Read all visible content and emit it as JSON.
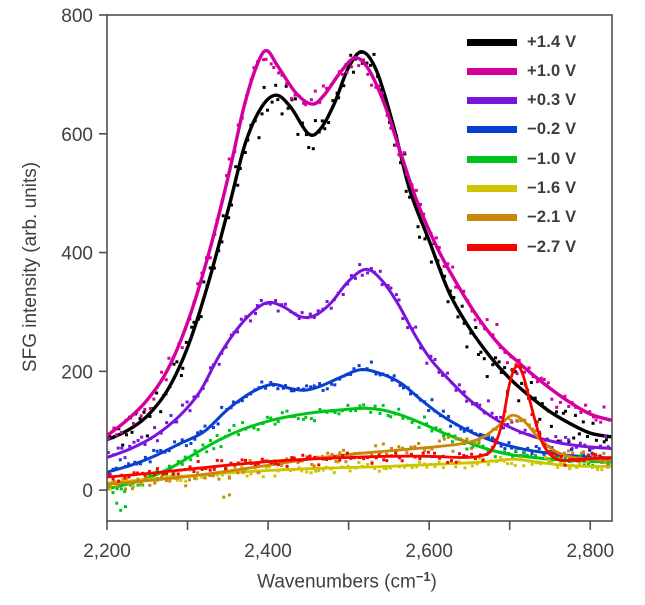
{
  "figure": {
    "ylabel": "SFG intensity (arb. units)",
    "xlabel_prefix": "Wavenumbers (cm",
    "xlabel_sup": "−1",
    "xlabel_suffix": ")"
  },
  "chart_data": {
    "type": "line",
    "title": "",
    "xlabel": "Wavenumbers (cm⁻¹)",
    "ylabel": "SFG intensity (arb. units)",
    "xlim": [
      2200,
      2827
    ],
    "ylim": [
      -52,
      800
    ],
    "grid": false,
    "legend_position": "upper right",
    "x_major_ticks": [
      2200,
      2400,
      2600,
      2800
    ],
    "x_major_tick_labels": [
      "2,200",
      "2,400",
      "2,600",
      "2,800"
    ],
    "x_minor_ticks": [
      2300,
      2500,
      2700
    ],
    "y_ticks": [
      0,
      200,
      400,
      600,
      800
    ],
    "y_tick_labels": [
      "0",
      "200",
      "400",
      "600",
      "800"
    ],
    "axis_color": "#4f4f4f",
    "text_color": "#3d4145",
    "series": [
      {
        "name": "+1.4 V",
        "color": "#000000",
        "noise": 24,
        "dot_step": 4.2,
        "seed": 11,
        "points": [
          [
            2200,
            85
          ],
          [
            2225,
            100
          ],
          [
            2250,
            125
          ],
          [
            2275,
            168
          ],
          [
            2300,
            240
          ],
          [
            2325,
            345
          ],
          [
            2352,
            480
          ],
          [
            2372,
            585
          ],
          [
            2392,
            645
          ],
          [
            2410,
            665
          ],
          [
            2428,
            645
          ],
          [
            2450,
            600
          ],
          [
            2465,
            608
          ],
          [
            2482,
            650
          ],
          [
            2500,
            712
          ],
          [
            2517,
            738
          ],
          [
            2535,
            705
          ],
          [
            2556,
            612
          ],
          [
            2576,
            505
          ],
          [
            2600,
            420
          ],
          [
            2625,
            332
          ],
          [
            2650,
            273
          ],
          [
            2675,
            226
          ],
          [
            2700,
            188
          ],
          [
            2725,
            158
          ],
          [
            2750,
            132
          ],
          [
            2775,
            112
          ],
          [
            2800,
            96
          ],
          [
            2825,
            90
          ]
        ]
      },
      {
        "name": "+1.0 V",
        "color": "#d4009d",
        "noise": 15,
        "dot_step": 5,
        "seed": 22,
        "points": [
          [
            2200,
            92
          ],
          [
            2225,
            118
          ],
          [
            2250,
            152
          ],
          [
            2275,
            202
          ],
          [
            2300,
            282
          ],
          [
            2325,
            392
          ],
          [
            2350,
            525
          ],
          [
            2370,
            645
          ],
          [
            2386,
            715
          ],
          [
            2398,
            740
          ],
          [
            2412,
            714
          ],
          [
            2435,
            668
          ],
          [
            2455,
            650
          ],
          [
            2470,
            666
          ],
          [
            2490,
            704
          ],
          [
            2508,
            728
          ],
          [
            2525,
            708
          ],
          [
            2545,
            648
          ],
          [
            2565,
            566
          ],
          [
            2585,
            486
          ],
          [
            2610,
            408
          ],
          [
            2635,
            346
          ],
          [
            2660,
            292
          ],
          [
            2685,
            248
          ],
          [
            2710,
            216
          ],
          [
            2740,
            182
          ],
          [
            2770,
            152
          ],
          [
            2800,
            128
          ],
          [
            2825,
            118
          ]
        ]
      },
      {
        "name": "+0.3 V",
        "color": "#7a14da",
        "noise": 12,
        "dot_step": 5,
        "seed": 33,
        "points": [
          [
            2200,
            55
          ],
          [
            2230,
            70
          ],
          [
            2260,
            92
          ],
          [
            2290,
            125
          ],
          [
            2315,
            165
          ],
          [
            2340,
            228
          ],
          [
            2365,
            277
          ],
          [
            2388,
            308
          ],
          [
            2403,
            316
          ],
          [
            2420,
            308
          ],
          [
            2440,
            292
          ],
          [
            2458,
            294
          ],
          [
            2478,
            315
          ],
          [
            2500,
            352
          ],
          [
            2522,
            372
          ],
          [
            2542,
            352
          ],
          [
            2562,
            312
          ],
          [
            2582,
            262
          ],
          [
            2602,
            220
          ],
          [
            2626,
            184
          ],
          [
            2650,
            152
          ],
          [
            2675,
            126
          ],
          [
            2700,
            106
          ],
          [
            2730,
            90
          ],
          [
            2760,
            80
          ],
          [
            2790,
            74
          ],
          [
            2825,
            70
          ]
        ]
      },
      {
        "name": "−0.2 V",
        "color": "#0b3fd0",
        "noise": 9,
        "dot_step": 5,
        "seed": 44,
        "points": [
          [
            2200,
            30
          ],
          [
            2230,
            42
          ],
          [
            2260,
            58
          ],
          [
            2290,
            78
          ],
          [
            2320,
            98
          ],
          [
            2350,
            136
          ],
          [
            2380,
            165
          ],
          [
            2405,
            178
          ],
          [
            2425,
            172
          ],
          [
            2445,
            168
          ],
          [
            2465,
            175
          ],
          [
            2490,
            190
          ],
          [
            2515,
            203
          ],
          [
            2540,
            196
          ],
          [
            2565,
            180
          ],
          [
            2590,
            152
          ],
          [
            2615,
            126
          ],
          [
            2640,
            106
          ],
          [
            2665,
            90
          ],
          [
            2690,
            78
          ],
          [
            2720,
            68
          ],
          [
            2750,
            62
          ],
          [
            2785,
            57
          ],
          [
            2825,
            54
          ]
        ]
      },
      {
        "name": "−1.0 V",
        "color": "#00c41c",
        "noise": 9,
        "dot_step": 5,
        "seed": 55,
        "extra_dots": [
          [
            2212,
            -22
          ],
          [
            2217,
            -34
          ],
          [
            2223,
            -28
          ]
        ],
        "points": [
          [
            2200,
            2
          ],
          [
            2225,
            10
          ],
          [
            2250,
            20
          ],
          [
            2280,
            38
          ],
          [
            2310,
            62
          ],
          [
            2340,
            85
          ],
          [
            2370,
            103
          ],
          [
            2400,
            116
          ],
          [
            2430,
            125
          ],
          [
            2460,
            131
          ],
          [
            2490,
            135
          ],
          [
            2520,
            138
          ],
          [
            2545,
            134
          ],
          [
            2570,
            124
          ],
          [
            2595,
            110
          ],
          [
            2620,
            95
          ],
          [
            2645,
            82
          ],
          [
            2670,
            70
          ],
          [
            2700,
            60
          ],
          [
            2730,
            55
          ],
          [
            2760,
            51
          ],
          [
            2790,
            49
          ],
          [
            2825,
            47
          ]
        ]
      },
      {
        "name": "−1.6 V",
        "color": "#cfc400",
        "noise": 7,
        "dot_step": 5,
        "seed": 66,
        "points": [
          [
            2200,
            12
          ],
          [
            2250,
            18
          ],
          [
            2300,
            24
          ],
          [
            2350,
            29
          ],
          [
            2400,
            33
          ],
          [
            2450,
            36
          ],
          [
            2500,
            38
          ],
          [
            2550,
            40
          ],
          [
            2600,
            43
          ],
          [
            2650,
            46
          ],
          [
            2680,
            49
          ],
          [
            2705,
            52
          ],
          [
            2735,
            47
          ],
          [
            2765,
            42
          ],
          [
            2800,
            40
          ],
          [
            2825,
            40
          ]
        ]
      },
      {
        "name": "−2.1 V",
        "color": "#c8870b",
        "noise": 9,
        "dot_step": 5,
        "seed": 77,
        "extra_dots": [
          [
            2345,
            -12
          ],
          [
            2352,
            -8
          ]
        ],
        "points": [
          [
            2200,
            10
          ],
          [
            2250,
            16
          ],
          [
            2300,
            23
          ],
          [
            2350,
            32
          ],
          [
            2400,
            42
          ],
          [
            2450,
            52
          ],
          [
            2500,
            60
          ],
          [
            2550,
            66
          ],
          [
            2600,
            72
          ],
          [
            2640,
            78
          ],
          [
            2665,
            88
          ],
          [
            2688,
            110
          ],
          [
            2703,
            126
          ],
          [
            2718,
            116
          ],
          [
            2736,
            88
          ],
          [
            2756,
            66
          ],
          [
            2776,
            56
          ],
          [
            2800,
            52
          ],
          [
            2825,
            50
          ]
        ]
      },
      {
        "name": "−2.7 V",
        "color": "#f50500",
        "noise": 7,
        "dot_step": 5,
        "seed": 88,
        "points": [
          [
            2200,
            22
          ],
          [
            2250,
            28
          ],
          [
            2300,
            35
          ],
          [
            2350,
            42
          ],
          [
            2400,
            48
          ],
          [
            2450,
            52
          ],
          [
            2500,
            55
          ],
          [
            2550,
            57
          ],
          [
            2600,
            57
          ],
          [
            2640,
            55
          ],
          [
            2662,
            57
          ],
          [
            2678,
            68
          ],
          [
            2690,
            110
          ],
          [
            2700,
            180
          ],
          [
            2708,
            208
          ],
          [
            2716,
            196
          ],
          [
            2726,
            145
          ],
          [
            2738,
            88
          ],
          [
            2750,
            60
          ],
          [
            2765,
            50
          ],
          [
            2790,
            52
          ],
          [
            2825,
            55
          ]
        ]
      }
    ]
  }
}
